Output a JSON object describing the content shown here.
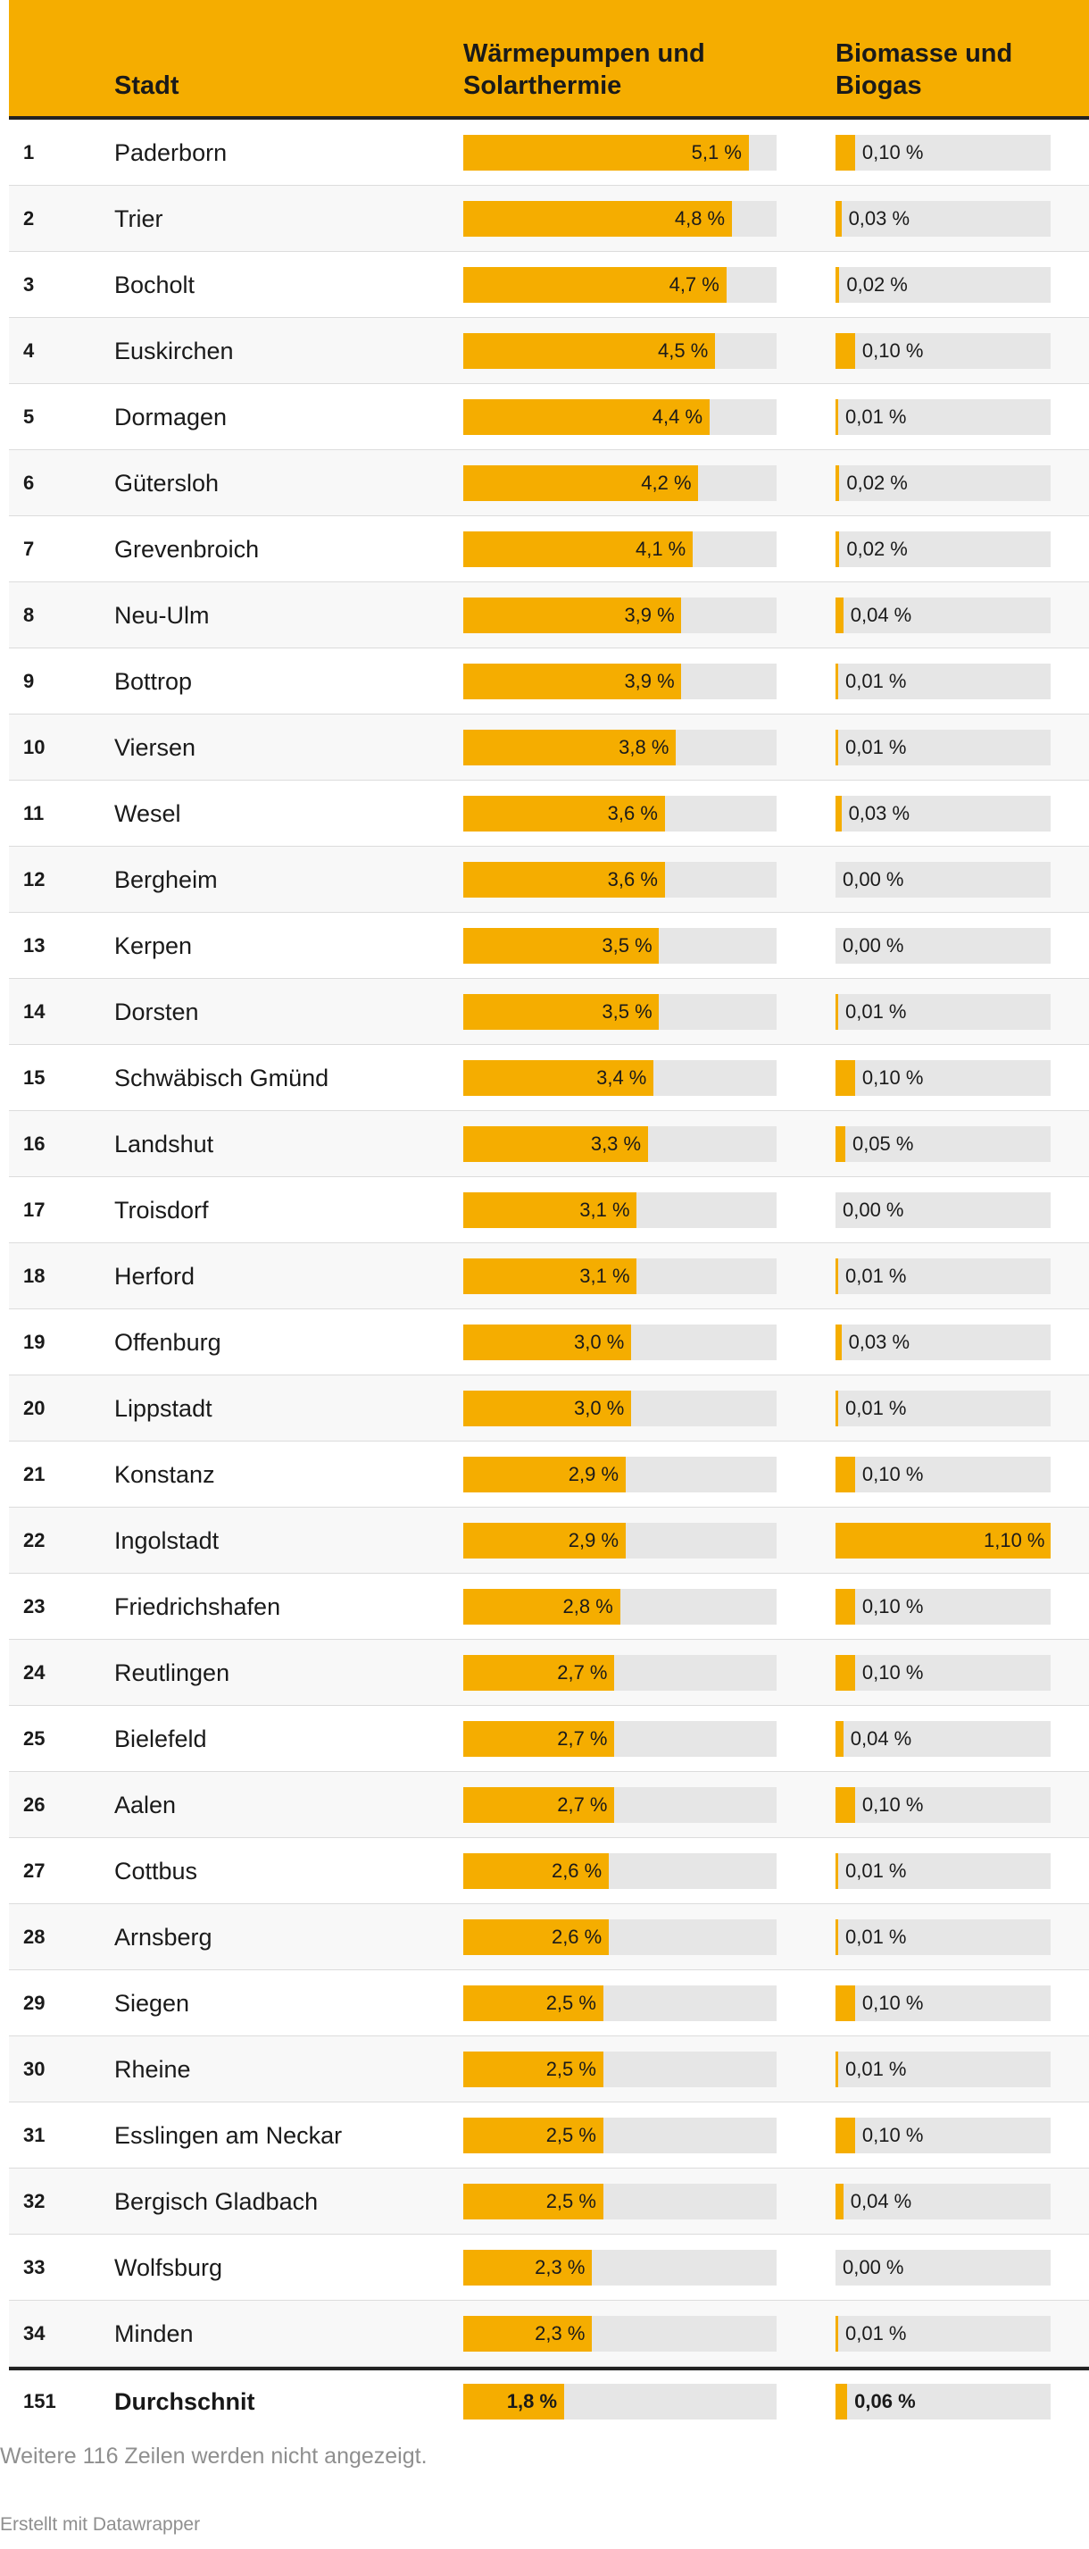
{
  "table": {
    "headers": {
      "city": "Stadt",
      "heat": "Wärmepumpen und Solarthermie",
      "bio": "Biomasse und Biogas"
    },
    "scale": {
      "heat_max": 5.6,
      "bio_max": 1.1
    },
    "rows": [
      {
        "rank": "1",
        "city": "Paderborn",
        "heat": 5.1,
        "heat_label": "5,1 %",
        "bio": 0.1,
        "bio_label": "0,10 %"
      },
      {
        "rank": "2",
        "city": "Trier",
        "heat": 4.8,
        "heat_label": "4,8 %",
        "bio": 0.03,
        "bio_label": "0,03 %"
      },
      {
        "rank": "3",
        "city": "Bocholt",
        "heat": 4.7,
        "heat_label": "4,7 %",
        "bio": 0.02,
        "bio_label": "0,02 %"
      },
      {
        "rank": "4",
        "city": "Euskirchen",
        "heat": 4.5,
        "heat_label": "4,5 %",
        "bio": 0.1,
        "bio_label": "0,10 %"
      },
      {
        "rank": "5",
        "city": "Dormagen",
        "heat": 4.4,
        "heat_label": "4,4 %",
        "bio": 0.01,
        "bio_label": "0,01 %"
      },
      {
        "rank": "6",
        "city": "Gütersloh",
        "heat": 4.2,
        "heat_label": "4,2 %",
        "bio": 0.02,
        "bio_label": "0,02 %"
      },
      {
        "rank": "7",
        "city": "Grevenbroich",
        "heat": 4.1,
        "heat_label": "4,1 %",
        "bio": 0.02,
        "bio_label": "0,02 %"
      },
      {
        "rank": "8",
        "city": "Neu-Ulm",
        "heat": 3.9,
        "heat_label": "3,9 %",
        "bio": 0.04,
        "bio_label": "0,04 %"
      },
      {
        "rank": "9",
        "city": "Bottrop",
        "heat": 3.9,
        "heat_label": "3,9 %",
        "bio": 0.01,
        "bio_label": "0,01 %"
      },
      {
        "rank": "10",
        "city": "Viersen",
        "heat": 3.8,
        "heat_label": "3,8 %",
        "bio": 0.01,
        "bio_label": "0,01 %"
      },
      {
        "rank": "11",
        "city": "Wesel",
        "heat": 3.6,
        "heat_label": "3,6 %",
        "bio": 0.03,
        "bio_label": "0,03 %"
      },
      {
        "rank": "12",
        "city": "Bergheim",
        "heat": 3.6,
        "heat_label": "3,6 %",
        "bio": 0.0,
        "bio_label": "0,00 %"
      },
      {
        "rank": "13",
        "city": "Kerpen",
        "heat": 3.5,
        "heat_label": "3,5 %",
        "bio": 0.0,
        "bio_label": "0,00 %"
      },
      {
        "rank": "14",
        "city": "Dorsten",
        "heat": 3.5,
        "heat_label": "3,5 %",
        "bio": 0.01,
        "bio_label": "0,01 %"
      },
      {
        "rank": "15",
        "city": "Schwäbisch Gmünd",
        "heat": 3.4,
        "heat_label": "3,4 %",
        "bio": 0.1,
        "bio_label": "0,10 %"
      },
      {
        "rank": "16",
        "city": "Landshut",
        "heat": 3.3,
        "heat_label": "3,3 %",
        "bio": 0.05,
        "bio_label": "0,05 %"
      },
      {
        "rank": "17",
        "city": "Troisdorf",
        "heat": 3.1,
        "heat_label": "3,1 %",
        "bio": 0.0,
        "bio_label": "0,00 %"
      },
      {
        "rank": "18",
        "city": "Herford",
        "heat": 3.1,
        "heat_label": "3,1 %",
        "bio": 0.01,
        "bio_label": "0,01 %"
      },
      {
        "rank": "19",
        "city": "Offenburg",
        "heat": 3.0,
        "heat_label": "3,0 %",
        "bio": 0.03,
        "bio_label": "0,03 %"
      },
      {
        "rank": "20",
        "city": "Lippstadt",
        "heat": 3.0,
        "heat_label": "3,0 %",
        "bio": 0.01,
        "bio_label": "0,01 %"
      },
      {
        "rank": "21",
        "city": "Konstanz",
        "heat": 2.9,
        "heat_label": "2,9 %",
        "bio": 0.1,
        "bio_label": "0,10 %"
      },
      {
        "rank": "22",
        "city": "Ingolstadt",
        "heat": 2.9,
        "heat_label": "2,9 %",
        "bio": 1.1,
        "bio_label": "1,10 %"
      },
      {
        "rank": "23",
        "city": "Friedrichshafen",
        "heat": 2.8,
        "heat_label": "2,8 %",
        "bio": 0.1,
        "bio_label": "0,10 %"
      },
      {
        "rank": "24",
        "city": "Reutlingen",
        "heat": 2.7,
        "heat_label": "2,7 %",
        "bio": 0.1,
        "bio_label": "0,10 %"
      },
      {
        "rank": "25",
        "city": "Bielefeld",
        "heat": 2.7,
        "heat_label": "2,7 %",
        "bio": 0.04,
        "bio_label": "0,04 %"
      },
      {
        "rank": "26",
        "city": "Aalen",
        "heat": 2.7,
        "heat_label": "2,7 %",
        "bio": 0.1,
        "bio_label": "0,10 %"
      },
      {
        "rank": "27",
        "city": "Cottbus",
        "heat": 2.6,
        "heat_label": "2,6 %",
        "bio": 0.01,
        "bio_label": "0,01 %"
      },
      {
        "rank": "28",
        "city": "Arnsberg",
        "heat": 2.6,
        "heat_label": "2,6 %",
        "bio": 0.01,
        "bio_label": "0,01 %"
      },
      {
        "rank": "29",
        "city": "Siegen",
        "heat": 2.5,
        "heat_label": "2,5 %",
        "bio": 0.1,
        "bio_label": "0,10 %"
      },
      {
        "rank": "30",
        "city": "Rheine",
        "heat": 2.5,
        "heat_label": "2,5 %",
        "bio": 0.01,
        "bio_label": "0,01 %"
      },
      {
        "rank": "31",
        "city": "Esslingen am Neckar",
        "heat": 2.5,
        "heat_label": "2,5 %",
        "bio": 0.1,
        "bio_label": "0,10 %"
      },
      {
        "rank": "32",
        "city": "Bergisch Gladbach",
        "heat": 2.5,
        "heat_label": "2,5 %",
        "bio": 0.04,
        "bio_label": "0,04 %"
      },
      {
        "rank": "33",
        "city": "Wolfsburg",
        "heat": 2.3,
        "heat_label": "2,3 %",
        "bio": 0.0,
        "bio_label": "0,00 %"
      },
      {
        "rank": "34",
        "city": "Minden",
        "heat": 2.3,
        "heat_label": "2,3 %",
        "bio": 0.01,
        "bio_label": "0,01 %"
      }
    ],
    "total": {
      "rank": "151",
      "city": "Durchschnit",
      "heat": 1.8,
      "heat_label": "1,8 %",
      "bio": 0.06,
      "bio_label": "0,06 %"
    }
  },
  "footer": {
    "note": "Weitere 116 Zeilen werden nicht angezeigt.",
    "credit": "Erstellt mit Datawrapper"
  },
  "colors": {
    "accent": "#f5ad00",
    "track": "#e6e6e6",
    "rule": "#222222",
    "muted": "#8f8f8f"
  },
  "chart_data": {
    "type": "table",
    "title": "",
    "columns": [
      "Stadt",
      "Wärmepumpen und Solarthermie",
      "Biomasse und Biogas"
    ],
    "units": "%",
    "categories": [
      "Paderborn",
      "Trier",
      "Bocholt",
      "Euskirchen",
      "Dormagen",
      "Gütersloh",
      "Grevenbroich",
      "Neu-Ulm",
      "Bottrop",
      "Viersen",
      "Wesel",
      "Bergheim",
      "Kerpen",
      "Dorsten",
      "Schwäbisch Gmünd",
      "Landshut",
      "Troisdorf",
      "Herford",
      "Offenburg",
      "Lippstadt",
      "Konstanz",
      "Ingolstadt",
      "Friedrichshafen",
      "Reutlingen",
      "Bielefeld",
      "Aalen",
      "Cottbus",
      "Arnsberg",
      "Siegen",
      "Rheine",
      "Esslingen am Neckar",
      "Bergisch Gladbach",
      "Wolfsburg",
      "Minden",
      "Durchschnit"
    ],
    "series": [
      {
        "name": "Wärmepumpen und Solarthermie",
        "values": [
          5.1,
          4.8,
          4.7,
          4.5,
          4.4,
          4.2,
          4.1,
          3.9,
          3.9,
          3.8,
          3.6,
          3.6,
          3.5,
          3.5,
          3.4,
          3.3,
          3.1,
          3.1,
          3.0,
          3.0,
          2.9,
          2.9,
          2.8,
          2.7,
          2.7,
          2.7,
          2.6,
          2.6,
          2.5,
          2.5,
          2.5,
          2.5,
          2.3,
          2.3,
          1.8
        ]
      },
      {
        "name": "Biomasse und Biogas",
        "values": [
          0.1,
          0.03,
          0.02,
          0.1,
          0.01,
          0.02,
          0.02,
          0.04,
          0.01,
          0.01,
          0.03,
          0.0,
          0.0,
          0.01,
          0.1,
          0.05,
          0.0,
          0.01,
          0.03,
          0.01,
          0.1,
          1.1,
          0.1,
          0.1,
          0.04,
          0.1,
          0.01,
          0.01,
          0.1,
          0.01,
          0.1,
          0.04,
          0.0,
          0.01,
          0.06
        ]
      }
    ]
  }
}
